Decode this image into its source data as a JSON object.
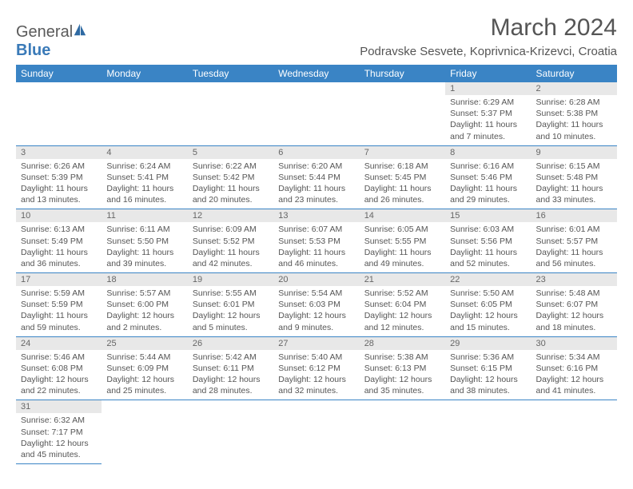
{
  "logo": {
    "general": "General",
    "blue": "Blue"
  },
  "title": "March 2024",
  "location": "Podravske Sesvete, Koprivnica-Krizevci, Croatia",
  "colors": {
    "header_bg": "#3a84c5",
    "header_text": "#ffffff",
    "daynum_bg": "#e8e8e8",
    "text": "#555555",
    "border": "#3a84c5"
  },
  "weekdays": [
    "Sunday",
    "Monday",
    "Tuesday",
    "Wednesday",
    "Thursday",
    "Friday",
    "Saturday"
  ],
  "layout": {
    "weeks": 6,
    "first_weekday_index": 5,
    "days_in_month": 31
  },
  "days": {
    "1": {
      "sunrise": "6:29 AM",
      "sunset": "5:37 PM",
      "daylight": "11 hours and 7 minutes."
    },
    "2": {
      "sunrise": "6:28 AM",
      "sunset": "5:38 PM",
      "daylight": "11 hours and 10 minutes."
    },
    "3": {
      "sunrise": "6:26 AM",
      "sunset": "5:39 PM",
      "daylight": "11 hours and 13 minutes."
    },
    "4": {
      "sunrise": "6:24 AM",
      "sunset": "5:41 PM",
      "daylight": "11 hours and 16 minutes."
    },
    "5": {
      "sunrise": "6:22 AM",
      "sunset": "5:42 PM",
      "daylight": "11 hours and 20 minutes."
    },
    "6": {
      "sunrise": "6:20 AM",
      "sunset": "5:44 PM",
      "daylight": "11 hours and 23 minutes."
    },
    "7": {
      "sunrise": "6:18 AM",
      "sunset": "5:45 PM",
      "daylight": "11 hours and 26 minutes."
    },
    "8": {
      "sunrise": "6:16 AM",
      "sunset": "5:46 PM",
      "daylight": "11 hours and 29 minutes."
    },
    "9": {
      "sunrise": "6:15 AM",
      "sunset": "5:48 PM",
      "daylight": "11 hours and 33 minutes."
    },
    "10": {
      "sunrise": "6:13 AM",
      "sunset": "5:49 PM",
      "daylight": "11 hours and 36 minutes."
    },
    "11": {
      "sunrise": "6:11 AM",
      "sunset": "5:50 PM",
      "daylight": "11 hours and 39 minutes."
    },
    "12": {
      "sunrise": "6:09 AM",
      "sunset": "5:52 PM",
      "daylight": "11 hours and 42 minutes."
    },
    "13": {
      "sunrise": "6:07 AM",
      "sunset": "5:53 PM",
      "daylight": "11 hours and 46 minutes."
    },
    "14": {
      "sunrise": "6:05 AM",
      "sunset": "5:55 PM",
      "daylight": "11 hours and 49 minutes."
    },
    "15": {
      "sunrise": "6:03 AM",
      "sunset": "5:56 PM",
      "daylight": "11 hours and 52 minutes."
    },
    "16": {
      "sunrise": "6:01 AM",
      "sunset": "5:57 PM",
      "daylight": "11 hours and 56 minutes."
    },
    "17": {
      "sunrise": "5:59 AM",
      "sunset": "5:59 PM",
      "daylight": "11 hours and 59 minutes."
    },
    "18": {
      "sunrise": "5:57 AM",
      "sunset": "6:00 PM",
      "daylight": "12 hours and 2 minutes."
    },
    "19": {
      "sunrise": "5:55 AM",
      "sunset": "6:01 PM",
      "daylight": "12 hours and 5 minutes."
    },
    "20": {
      "sunrise": "5:54 AM",
      "sunset": "6:03 PM",
      "daylight": "12 hours and 9 minutes."
    },
    "21": {
      "sunrise": "5:52 AM",
      "sunset": "6:04 PM",
      "daylight": "12 hours and 12 minutes."
    },
    "22": {
      "sunrise": "5:50 AM",
      "sunset": "6:05 PM",
      "daylight": "12 hours and 15 minutes."
    },
    "23": {
      "sunrise": "5:48 AM",
      "sunset": "6:07 PM",
      "daylight": "12 hours and 18 minutes."
    },
    "24": {
      "sunrise": "5:46 AM",
      "sunset": "6:08 PM",
      "daylight": "12 hours and 22 minutes."
    },
    "25": {
      "sunrise": "5:44 AM",
      "sunset": "6:09 PM",
      "daylight": "12 hours and 25 minutes."
    },
    "26": {
      "sunrise": "5:42 AM",
      "sunset": "6:11 PM",
      "daylight": "12 hours and 28 minutes."
    },
    "27": {
      "sunrise": "5:40 AM",
      "sunset": "6:12 PM",
      "daylight": "12 hours and 32 minutes."
    },
    "28": {
      "sunrise": "5:38 AM",
      "sunset": "6:13 PM",
      "daylight": "12 hours and 35 minutes."
    },
    "29": {
      "sunrise": "5:36 AM",
      "sunset": "6:15 PM",
      "daylight": "12 hours and 38 minutes."
    },
    "30": {
      "sunrise": "5:34 AM",
      "sunset": "6:16 PM",
      "daylight": "12 hours and 41 minutes."
    },
    "31": {
      "sunrise": "6:32 AM",
      "sunset": "7:17 PM",
      "daylight": "12 hours and 45 minutes."
    }
  },
  "labels": {
    "sunrise": "Sunrise: ",
    "sunset": "Sunset: ",
    "daylight": "Daylight: "
  }
}
